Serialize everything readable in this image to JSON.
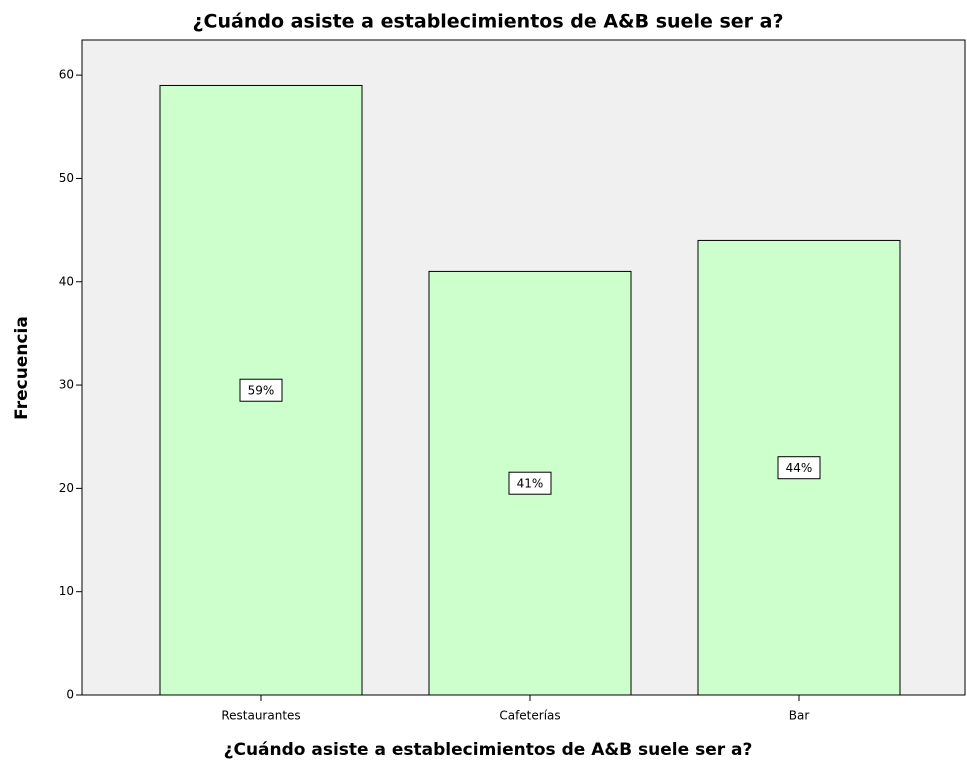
{
  "chart_data": {
    "type": "bar",
    "title": "¿Cuándo asiste a establecimientos de A&B suele ser a?",
    "x_label": "¿Cuándo asiste a establecimientos de A&B suele ser a?",
    "y_label": "Frecuencia",
    "categories": [
      "Restaurantes",
      "Cafeterías",
      "Bar"
    ],
    "values": [
      59,
      41,
      44
    ],
    "value_labels": [
      "59%",
      "41%",
      "44%"
    ],
    "color": "#ccffcc",
    "ylim": [
      0,
      63.4
    ],
    "yticks": [
      0,
      10,
      20,
      30,
      40,
      50,
      60
    ]
  }
}
